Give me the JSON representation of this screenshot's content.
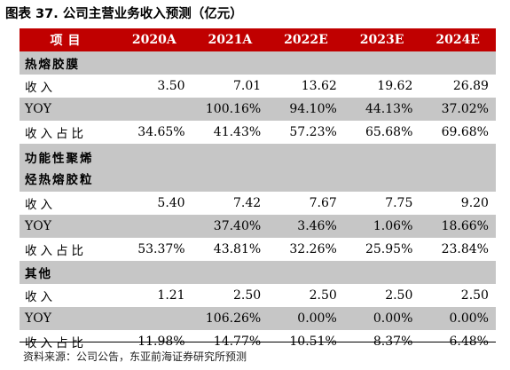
{
  "title": "图表 37. 公司主营业务收入预测（亿元）",
  "header": [
    "项目",
    "2020A",
    "2021A",
    "2022E",
    "2023E",
    "2024E"
  ],
  "sections": [
    {
      "name_lines": [
        "热熔胶膜"
      ],
      "rows": [
        {
          "label": "收入",
          "values": [
            "3.50",
            "7.01",
            "13.62",
            "19.62",
            "26.89"
          ]
        },
        {
          "label": "YOY",
          "values": [
            "",
            "100.16%",
            "94.10%",
            "44.13%",
            "37.02%"
          ]
        },
        {
          "label": "收入占比",
          "values": [
            "34.65%",
            "41.43%",
            "57.23%",
            "65.68%",
            "69.68%"
          ]
        }
      ]
    },
    {
      "name_lines": [
        "功能性聚烯",
        "烃热熔胶粒"
      ],
      "rows": [
        {
          "label": "收入",
          "values": [
            "5.40",
            "7.42",
            "7.67",
            "7.75",
            "9.20"
          ]
        },
        {
          "label": "YOY",
          "values": [
            "",
            "37.40%",
            "3.46%",
            "1.06%",
            "18.66%"
          ]
        },
        {
          "label": "收入占比",
          "values": [
            "53.37%",
            "43.81%",
            "32.26%",
            "25.95%",
            "23.84%"
          ]
        }
      ]
    },
    {
      "name_lines": [
        "其他"
      ],
      "rows": [
        {
          "label": "收入",
          "values": [
            "1.21",
            "2.50",
            "2.50",
            "2.50",
            "2.50"
          ]
        },
        {
          "label": "YOY",
          "values": [
            "",
            "106.26%",
            "0.00%",
            "0.00%",
            "0.00%"
          ]
        },
        {
          "label": "收入占比",
          "values": [
            "11.98%",
            "14.77%",
            "10.51%",
            "8.37%",
            "6.48%"
          ]
        }
      ]
    }
  ],
  "source": "资料来源：公司公告，东亚前海证券研究所预测"
}
